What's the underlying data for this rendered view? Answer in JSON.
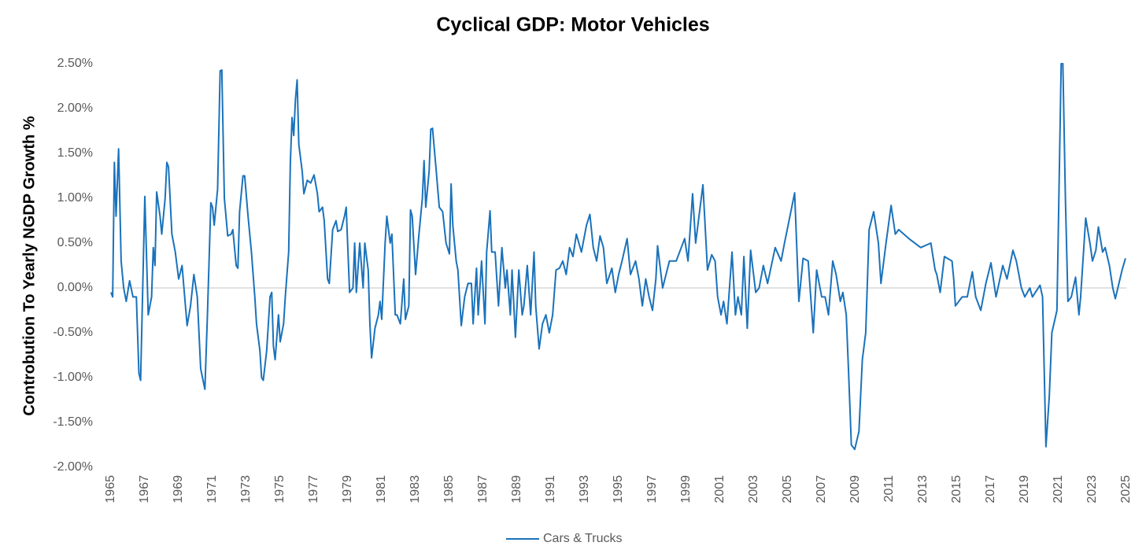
{
  "chart_data": {
    "type": "line",
    "title": "Cyclical GDP: Motor Vehicles",
    "y_label": "Controbution To Yearly NGDP Growth %",
    "xlim": [
      1965,
      2025
    ],
    "xticks": [
      1965,
      1967,
      1969,
      1971,
      1973,
      1975,
      1977,
      1979,
      1981,
      1983,
      1985,
      1987,
      1989,
      1991,
      1993,
      1995,
      1997,
      1999,
      2001,
      2003,
      2005,
      2007,
      2009,
      2011,
      2013,
      2015,
      2017,
      2019,
      2021,
      2023,
      2025
    ],
    "ylim": [
      -2,
      2.5
    ],
    "yticks": [
      {
        "value": -2,
        "label": "-2.00%"
      },
      {
        "value": -1.5,
        "label": "-1.50%"
      },
      {
        "value": -1,
        "label": "-1.00%"
      },
      {
        "value": -0.5,
        "label": "-0.50%"
      },
      {
        "value": 0,
        "label": "0.00%"
      },
      {
        "value": 0.5,
        "label": "0.50%"
      },
      {
        "value": 1,
        "label": "1.00%"
      },
      {
        "value": 1.5,
        "label": "1.50%"
      },
      {
        "value": 2,
        "label": "2.00%"
      },
      {
        "value": 2.5,
        "label": "2.50%"
      }
    ],
    "legend": "bottom",
    "x": [
      1965.0,
      1965.1,
      1965.2,
      1965.3,
      1965.45,
      1965.6,
      1965.75,
      1965.9,
      1966.1,
      1966.3,
      1966.5,
      1966.65,
      1966.75,
      1966.9,
      1967.0,
      1967.2,
      1967.4,
      1967.5,
      1967.6,
      1967.7,
      1967.9,
      1968.0,
      1968.2,
      1968.3,
      1968.4,
      1968.6,
      1968.8,
      1969.0,
      1969.2,
      1969.4,
      1969.5,
      1969.7,
      1969.9,
      1970.1,
      1970.3,
      1970.55,
      1970.7,
      1970.9,
      1971.0,
      1971.1,
      1971.3,
      1971.45,
      1971.55,
      1971.7,
      1971.9,
      1972.1,
      1972.2,
      1972.4,
      1972.5,
      1972.6,
      1972.8,
      1972.9,
      1973.1,
      1973.3,
      1973.5,
      1973.6,
      1973.8,
      1973.9,
      1974.0,
      1974.2,
      1974.4,
      1974.5,
      1974.6,
      1974.7,
      1974.9,
      1975.0,
      1975.2,
      1975.3,
      1975.5,
      1975.6,
      1975.7,
      1975.8,
      1975.9,
      1976.0,
      1976.1,
      1976.3,
      1976.4,
      1976.6,
      1976.8,
      1977.0,
      1977.2,
      1977.3,
      1977.5,
      1977.6,
      1977.8,
      1977.9,
      1978.1,
      1978.3,
      1978.4,
      1978.6,
      1978.8,
      1978.9,
      1979.1,
      1979.3,
      1979.4,
      1979.5,
      1979.7,
      1979.9,
      1980.0,
      1980.2,
      1980.3,
      1980.4,
      1980.6,
      1980.8,
      1980.9,
      1981.0,
      1981.2,
      1981.3,
      1981.5,
      1981.6,
      1981.8,
      1981.9,
      1982.1,
      1982.3,
      1982.4,
      1982.6,
      1982.7,
      1982.8,
      1983.0,
      1983.2,
      1983.4,
      1983.5,
      1983.6,
      1983.8,
      1983.9,
      1984.0,
      1984.2,
      1984.4,
      1984.6,
      1984.8,
      1985.0,
      1985.1,
      1985.2,
      1985.4,
      1985.5,
      1985.7,
      1985.9,
      1986.1,
      1986.3,
      1986.4,
      1986.6,
      1986.7,
      1986.9,
      1987.1,
      1987.2,
      1987.4,
      1987.5,
      1987.7,
      1987.9,
      1988.1,
      1988.3,
      1988.4,
      1988.6,
      1988.7,
      1988.9,
      1989.1,
      1989.3,
      1989.4,
      1989.6,
      1989.8,
      1990.0,
      1990.1,
      1990.3,
      1990.5,
      1990.7,
      1990.9,
      1991.1,
      1991.3,
      1991.5,
      1991.7,
      1991.9,
      1992.1,
      1992.3,
      1992.5,
      1992.8,
      1993.1,
      1993.3,
      1993.5,
      1993.7,
      1993.9,
      1994.1,
      1994.3,
      1994.6,
      1994.8,
      1995.0,
      1995.2,
      1995.5,
      1995.7,
      1996.0,
      1996.2,
      1996.4,
      1996.6,
      1996.8,
      1997.0,
      1997.2,
      1997.3,
      1997.6,
      1998.0,
      1998.4,
      1998.9,
      1999.1,
      1999.37,
      1999.55,
      1999.98,
      2000.25,
      2000.5,
      2000.7,
      2000.85,
      2001.05,
      2001.2,
      2001.4,
      2001.7,
      2001.9,
      2002.05,
      2002.25,
      2002.4,
      2002.6,
      2002.8,
      2003.1,
      2003.3,
      2003.55,
      2003.8,
      2004.25,
      2004.6,
      2004.8,
      2005.4,
      2005.65,
      2005.9,
      2006.2,
      2006.5,
      2006.7,
      2007.0,
      2007.2,
      2007.4,
      2007.65,
      2007.85,
      2008.1,
      2008.25,
      2008.45,
      2008.6,
      2008.75,
      2008.95,
      2009.2,
      2009.4,
      2009.6,
      2009.8,
      2010.07,
      2010.35,
      2010.5,
      2010.8,
      2011.1,
      2011.35,
      2011.55,
      2012.15,
      2012.85,
      2013.45,
      2013.7,
      2013.8,
      2014.0,
      2014.25,
      2014.7,
      2014.8,
      2014.9,
      2015.3,
      2015.6,
      2015.9,
      2016.1,
      2016.4,
      2016.7,
      2017.0,
      2017.3,
      2017.7,
      2017.95,
      2018.3,
      2018.5,
      2018.8,
      2019.0,
      2019.3,
      2019.45,
      2019.9,
      2020.05,
      2020.25,
      2020.45,
      2020.6,
      2020.9,
      2021.15,
      2021.25,
      2021.4,
      2021.55,
      2021.75,
      2022.0,
      2022.2,
      2022.3,
      2022.6,
      2022.85,
      2023.0,
      2023.2,
      2023.35,
      2023.6,
      2023.75,
      2024.0,
      2024.2,
      2024.35,
      2024.5,
      2024.75,
      2024.95
    ],
    "series": [
      {
        "name": "Cars & Trucks",
        "color": "#1a72bb",
        "values": [
          -0.05,
          -0.1,
          1.4,
          0.8,
          1.55,
          0.3,
          0.0,
          -0.15,
          0.08,
          -0.1,
          -0.1,
          -0.95,
          -1.03,
          0.2,
          1.02,
          -0.3,
          -0.1,
          0.45,
          0.25,
          1.07,
          0.8,
          0.6,
          1.0,
          1.4,
          1.35,
          0.6,
          0.4,
          0.1,
          0.25,
          -0.2,
          -0.42,
          -0.2,
          0.15,
          -0.1,
          -0.9,
          -1.13,
          -0.3,
          0.95,
          0.9,
          0.7,
          1.1,
          2.42,
          2.43,
          1.0,
          0.58,
          0.6,
          0.65,
          0.25,
          0.22,
          0.85,
          1.25,
          1.25,
          0.8,
          0.4,
          -0.1,
          -0.4,
          -0.7,
          -1.0,
          -1.03,
          -0.7,
          -0.1,
          -0.05,
          -0.65,
          -0.8,
          -0.3,
          -0.6,
          -0.4,
          -0.1,
          0.4,
          1.4,
          1.9,
          1.7,
          2.1,
          2.32,
          1.6,
          1.3,
          1.05,
          1.2,
          1.17,
          1.26,
          1.05,
          0.85,
          0.9,
          0.75,
          0.1,
          0.05,
          0.65,
          0.75,
          0.63,
          0.65,
          0.8,
          0.9,
          -0.05,
          0.0,
          0.5,
          -0.05,
          0.5,
          0.0,
          0.5,
          0.2,
          -0.4,
          -0.78,
          -0.45,
          -0.3,
          -0.15,
          -0.35,
          0.5,
          0.8,
          0.5,
          0.6,
          -0.3,
          -0.3,
          -0.4,
          0.1,
          -0.35,
          -0.2,
          0.87,
          0.8,
          0.15,
          0.6,
          1.0,
          1.42,
          0.9,
          1.3,
          1.77,
          1.78,
          1.35,
          0.9,
          0.85,
          0.5,
          0.38,
          1.16,
          0.7,
          0.3,
          0.2,
          -0.42,
          -0.1,
          0.05,
          0.05,
          -0.4,
          0.22,
          -0.3,
          0.3,
          -0.4,
          0.4,
          0.86,
          0.4,
          0.4,
          -0.2,
          0.45,
          0.0,
          0.2,
          -0.3,
          0.2,
          -0.55,
          0.2,
          -0.3,
          -0.2,
          0.25,
          -0.3,
          0.4,
          -0.2,
          -0.68,
          -0.4,
          -0.3,
          -0.5,
          -0.3,
          0.2,
          0.22,
          0.3,
          0.15,
          0.45,
          0.35,
          0.6,
          0.4,
          0.7,
          0.82,
          0.45,
          0.3,
          0.58,
          0.45,
          0.05,
          0.22,
          -0.05,
          0.15,
          0.3,
          0.55,
          0.15,
          0.3,
          0.1,
          -0.2,
          0.1,
          -0.1,
          -0.25,
          0.1,
          0.47,
          0.0,
          0.3,
          0.3,
          0.55,
          0.3,
          1.05,
          0.5,
          1.15,
          0.2,
          0.37,
          0.3,
          -0.1,
          -0.3,
          -0.15,
          -0.4,
          0.4,
          -0.3,
          -0.1,
          -0.3,
          0.35,
          -0.45,
          0.42,
          -0.05,
          0.0,
          0.25,
          0.05,
          0.45,
          0.3,
          0.5,
          1.06,
          -0.15,
          0.33,
          0.3,
          -0.5,
          0.2,
          -0.1,
          -0.1,
          -0.3,
          0.3,
          0.15,
          -0.15,
          -0.05,
          -0.3,
          -1.0,
          -1.75,
          -1.8,
          -1.6,
          -0.8,
          -0.5,
          0.65,
          0.85,
          0.5,
          0.05,
          0.5,
          0.92,
          0.6,
          0.65,
          0.55,
          0.45,
          0.5,
          0.2,
          0.15,
          -0.05,
          0.35,
          0.3,
          0.1,
          -0.2,
          -0.1,
          -0.1,
          0.18,
          -0.1,
          -0.25,
          0.05,
          0.28,
          -0.1,
          0.25,
          0.1,
          0.42,
          0.3,
          0.0,
          -0.1,
          0.0,
          -0.1,
          0.03,
          -0.1,
          -1.77,
          -1.2,
          -0.5,
          -0.25,
          2.5,
          2.5,
          1.0,
          -0.15,
          -0.1,
          0.12,
          -0.3,
          -0.1,
          0.78,
          0.5,
          0.3,
          0.42,
          0.68,
          0.4,
          0.45,
          0.25,
          0.0,
          -0.12,
          0.0,
          0.2,
          0.33
        ]
      }
    ]
  }
}
